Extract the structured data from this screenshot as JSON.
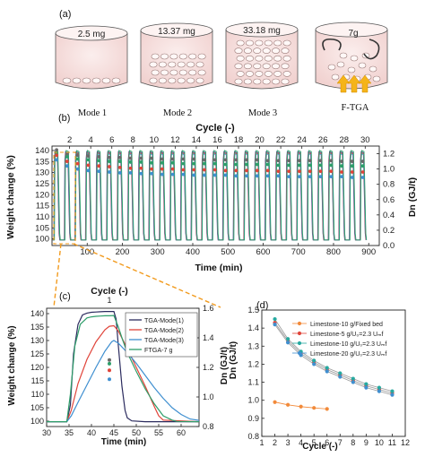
{
  "panel_a": {
    "label": "(a)",
    "cups": [
      {
        "mass": "2.5 mg",
        "caption": "Mode 1"
      },
      {
        "mass": "13.37 mg",
        "caption": "Mode 2"
      },
      {
        "mass": "33.18 mg",
        "caption": "Mode 3"
      },
      {
        "mass": "7g",
        "caption": "F-TGA"
      }
    ]
  },
  "chart_data": [
    {
      "id": "b",
      "panel_label": "(b)",
      "type": "line",
      "top_xlabel": "Cycle (-)",
      "top_ticks": [
        2,
        4,
        6,
        8,
        10,
        12,
        14,
        16,
        18,
        20,
        22,
        24,
        26,
        28,
        30
      ],
      "xlabel": "Time (min)",
      "x_ticks": [
        100,
        200,
        300,
        400,
        500,
        600,
        700,
        800,
        900
      ],
      "xlim": [
        0,
        930
      ],
      "ylabel": "Weight change (%)",
      "ylim": [
        97,
        142
      ],
      "y_ticks": [
        100,
        105,
        110,
        115,
        120,
        125,
        130,
        135,
        140
      ],
      "y2label": "Dn (GJ/t)",
      "y2lim": [
        0,
        1.3
      ],
      "y2_ticks": [
        0.0,
        0.2,
        0.4,
        0.6,
        0.8,
        1.0,
        1.2
      ],
      "cycles": 30,
      "cycle_period_min": 30,
      "series": [
        {
          "color": "#3b3b8c",
          "peak": 139.5,
          "base": 99.5
        },
        {
          "color": "#e0443a",
          "peak": 139.0,
          "base": 99.5
        },
        {
          "color": "#3f8fd0",
          "peak": 138.5,
          "base": 99.5
        },
        {
          "color": "#2e9e6a",
          "peak": 140.0,
          "base": 99.5
        }
      ],
      "markers": [
        {
          "color": "#2e9e6a",
          "dn": [
            1.22,
            1.16,
            1.13,
            1.12,
            1.11,
            1.1,
            1.1,
            1.09,
            1.09,
            1.08,
            1.08,
            1.08,
            1.07,
            1.07,
            1.07,
            1.07,
            1.06,
            1.06,
            1.06,
            1.06,
            1.06,
            1.05,
            1.05,
            1.05,
            1.05,
            1.05,
            1.05,
            1.04,
            1.04,
            1.04
          ]
        },
        {
          "color": "#e0443a",
          "dn": [
            1.18,
            1.1,
            1.07,
            1.05,
            1.04,
            1.03,
            1.02,
            1.01,
            1.01,
            1.0,
            1.0,
            1.0,
            0.99,
            0.99,
            0.99,
            0.99,
            0.98,
            0.98,
            0.98,
            0.98,
            0.98,
            0.97,
            0.97,
            0.97,
            0.97,
            0.97,
            0.97,
            0.96,
            0.96,
            0.96
          ]
        },
        {
          "color": "#3f8fd0",
          "dn": [
            1.12,
            1.04,
            1.0,
            0.98,
            0.97,
            0.96,
            0.95,
            0.95,
            0.94,
            0.94,
            0.93,
            0.93,
            0.93,
            0.92,
            0.92,
            0.92,
            0.92,
            0.91,
            0.91,
            0.91,
            0.91,
            0.91,
            0.9,
            0.9,
            0.9,
            0.9,
            0.9,
            0.9,
            0.89,
            0.89
          ]
        },
        {
          "color": "#6a6a6a",
          "dn": [
            1.25,
            1.2,
            1.18,
            1.17,
            1.16,
            1.15,
            1.15,
            1.14,
            1.14,
            1.14,
            1.13,
            1.13,
            1.13,
            1.13,
            1.12,
            1.12,
            1.12,
            1.12,
            1.12,
            1.12,
            1.11,
            1.11,
            1.11,
            1.11,
            1.11,
            1.11,
            1.11,
            1.1,
            1.1,
            1.1
          ]
        }
      ]
    },
    {
      "id": "c",
      "panel_label": "(c)",
      "type": "line",
      "top_xlabel": "Cycle (-)",
      "top_ticks": [
        1
      ],
      "xlabel": "Time (min)",
      "x_ticks": [
        30,
        35,
        40,
        45,
        50,
        55,
        60
      ],
      "xlim": [
        30,
        64
      ],
      "ylabel": "Weight change (%)",
      "ylim": [
        98,
        142
      ],
      "y_ticks": [
        100,
        105,
        110,
        115,
        120,
        125,
        130,
        135,
        140
      ],
      "y2label": "Dn (GJ/t)",
      "y2lim": [
        0.8,
        1.6
      ],
      "y2_ticks": [
        0.8,
        1.0,
        1.2,
        1.4,
        1.6
      ],
      "legend": {
        "position": "top-right"
      },
      "series": [
        {
          "name": "TGA-Mode(1)",
          "color": "#2b2b5e",
          "x": [
            30,
            34.5,
            35.3,
            36,
            37,
            38,
            39,
            40,
            41,
            42,
            43,
            44,
            45,
            45.5,
            46,
            46.8,
            47.5,
            48,
            49,
            52,
            64
          ],
          "y": [
            99.8,
            99.8,
            106,
            125,
            136,
            139.5,
            140.2,
            140.5,
            140.6,
            140.7,
            140.8,
            140.8,
            140.8,
            138,
            128,
            113,
            104,
            101.2,
            100.1,
            99.8,
            99.8
          ]
        },
        {
          "name": "TGA-Mode(2)",
          "color": "#e0443a",
          "x": [
            30,
            34.5,
            35.5,
            37,
            39,
            41,
            43,
            44,
            45,
            46,
            48,
            50,
            52,
            54,
            55,
            56,
            64
          ],
          "y": [
            99.8,
            99.8,
            104,
            114,
            123,
            129.5,
            134,
            135.3,
            135.5,
            133.5,
            127,
            120,
            113,
            105.5,
            102,
            100.4,
            99.8
          ]
        },
        {
          "name": "TGA-Mode(3)",
          "color": "#3f8fd0",
          "x": [
            30,
            34.5,
            35.5,
            37,
            39,
            41,
            43,
            44.5,
            45,
            46,
            48,
            50,
            52,
            54,
            56,
            58,
            60,
            62,
            64
          ],
          "y": [
            99.8,
            99.8,
            102,
            107,
            113.5,
            120,
            126,
            129.5,
            130,
            129,
            125.5,
            121.5,
            117,
            112.5,
            108.5,
            105,
            102.5,
            100.8,
            100.3
          ]
        },
        {
          "name": "FTGA-7 g",
          "color": "#2e9e6a",
          "x": [
            30,
            34.5,
            35.3,
            36.3,
            37.5,
            39,
            40,
            41,
            42,
            43,
            44,
            45,
            46,
            47,
            48,
            50,
            52,
            54,
            56,
            58,
            59,
            64
          ],
          "y": [
            99.8,
            99.8,
            110,
            128,
            136,
            138.4,
            138.8,
            139,
            139.1,
            139.2,
            139.2,
            139.3,
            135,
            130,
            125.5,
            118.5,
            112,
            106.5,
            102,
            100.4,
            99.9,
            99.8
          ]
        }
      ],
      "markers": [
        {
          "color": "#2e9e6a",
          "x": 44,
          "dn": 1.225
        },
        {
          "color": "#e0443a",
          "x": 44,
          "dn": 1.18
        },
        {
          "color": "#3f8fd0",
          "x": 44,
          "dn": 1.12
        },
        {
          "color": "#6a6a6a",
          "x": 44,
          "dn": 1.25
        }
      ]
    },
    {
      "id": "d",
      "panel_label": "(d)",
      "type": "scatter",
      "xlabel": "Cycle (-)",
      "xlim": [
        1,
        12
      ],
      "x_ticks": [
        1,
        2,
        3,
        4,
        5,
        6,
        7,
        8,
        9,
        10,
        11,
        12
      ],
      "ylabel": "Dn (GJ/t)",
      "ylim": [
        0.8,
        1.5
      ],
      "y_ticks": [
        0.8,
        0.9,
        1.0,
        1.1,
        1.2,
        1.3,
        1.4,
        1.5
      ],
      "legend": {
        "position": "top-right"
      },
      "series": [
        {
          "name": "Limestone-10 g/Fixed bed",
          "color": "#f28a3a",
          "x": [
            2,
            3,
            4,
            5,
            6
          ],
          "y": [
            0.99,
            0.975,
            0.965,
            0.958,
            0.952
          ]
        },
        {
          "name": "Limestone-5 g/U₀=2.3 Uₘf",
          "color": "#e0443a",
          "x": [
            2,
            3,
            4,
            5,
            6,
            7,
            8,
            9,
            10,
            11
          ],
          "y": [
            1.43,
            1.33,
            1.26,
            1.21,
            1.17,
            1.14,
            1.11,
            1.08,
            1.06,
            1.04
          ]
        },
        {
          "name": "Limestone-10 g/U₀=2.3 Uₘf",
          "color": "#26a9a0",
          "x": [
            2,
            3,
            4,
            5,
            6,
            7,
            8,
            9,
            10,
            11
          ],
          "y": [
            1.45,
            1.34,
            1.27,
            1.22,
            1.18,
            1.15,
            1.12,
            1.09,
            1.07,
            1.05
          ]
        },
        {
          "name": "Limestone-20 g/U₀=2.3 Uₘf",
          "color": "#3f8fd0",
          "x": [
            2,
            3,
            4,
            5,
            6,
            7,
            8,
            9,
            10,
            11
          ],
          "y": [
            1.42,
            1.32,
            1.25,
            1.2,
            1.16,
            1.13,
            1.1,
            1.07,
            1.05,
            1.03
          ]
        }
      ]
    }
  ]
}
